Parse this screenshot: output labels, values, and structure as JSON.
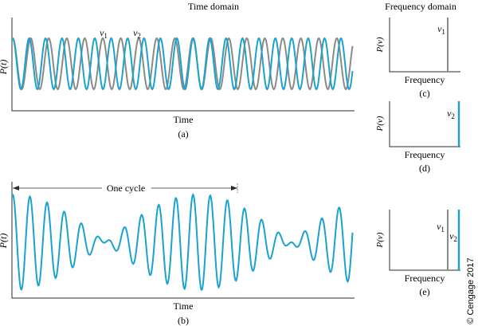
{
  "colors": {
    "wave_nu1": "#8a8a8a",
    "wave_nu2": "#1aa3cf",
    "axis": "#2b2b2b"
  },
  "time_domain": {
    "title": "Time domain",
    "panel_a": {
      "ylabel": "P(t)",
      "xlabel": "Time",
      "caption": "(a)",
      "label_nu1": "ν1",
      "label_nu2": "ν2"
    },
    "panel_b": {
      "ylabel": "P(t)",
      "xlabel": "Time",
      "caption": "(b)",
      "cycle_label": "One cycle"
    }
  },
  "frequency_domain": {
    "title": "Frequency domain",
    "panel_c": {
      "ylabel": "P(ν)",
      "xlabel": "Frequency",
      "caption": "(c)",
      "line_label": "ν1"
    },
    "panel_d": {
      "ylabel": "P(ν)",
      "xlabel": "Frequency",
      "caption": "(d)",
      "line_label": "ν2"
    },
    "panel_e": {
      "ylabel": "P(ν)",
      "xlabel": "Frequency",
      "caption": "(e)",
      "line_label_1": "ν1",
      "line_label_2": "ν2"
    }
  },
  "copyright": "© Cengage 2017"
}
